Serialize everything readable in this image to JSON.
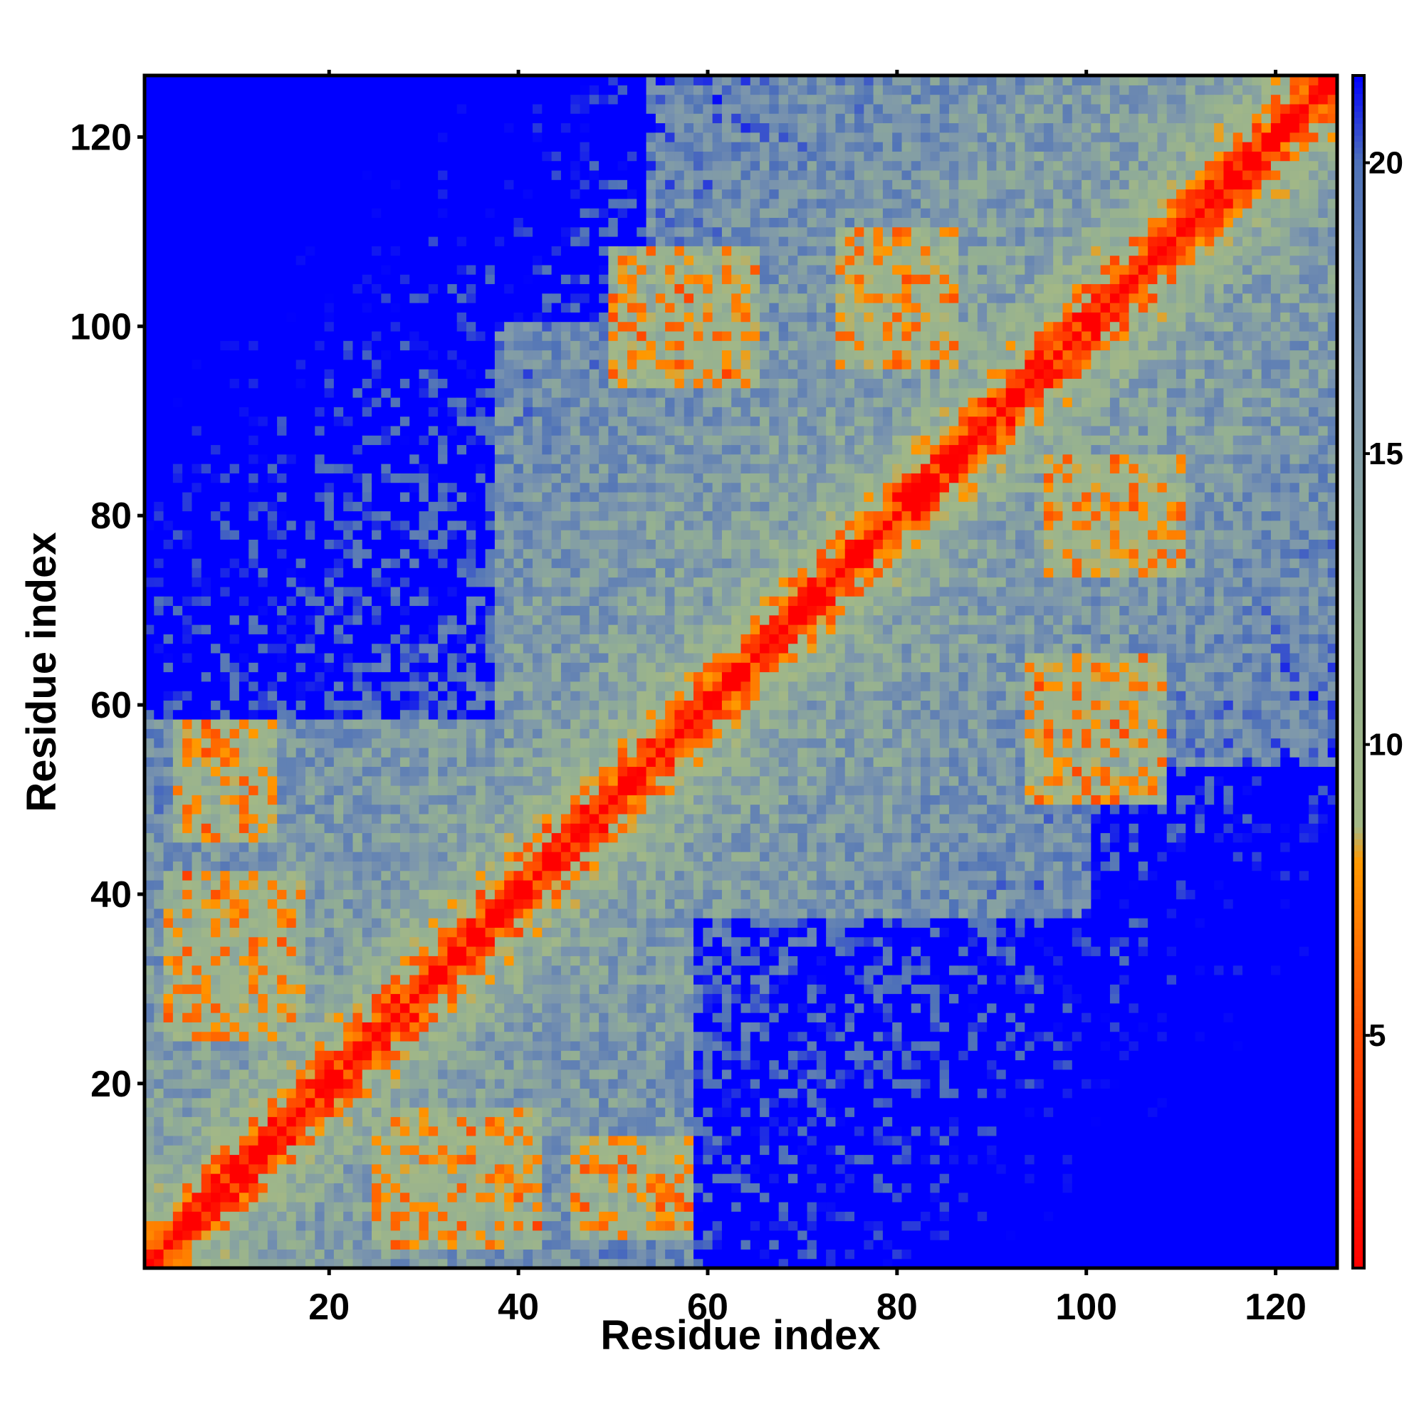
{
  "chart_data": {
    "type": "heatmap",
    "title": "",
    "xlabel": "Residue index",
    "ylabel": "Residue index",
    "n_residues": 126,
    "xlim": [
      1,
      126
    ],
    "ylim": [
      1,
      126
    ],
    "x_ticks": [
      20,
      40,
      60,
      80,
      100,
      120
    ],
    "y_ticks": [
      20,
      40,
      60,
      80,
      100,
      120
    ],
    "colorbar": {
      "range": [
        1,
        21.5
      ],
      "ticks": [
        5,
        10,
        15,
        20
      ],
      "stops": [
        {
          "value": 1,
          "color": "#ff0000"
        },
        {
          "value": 5,
          "color": "#ff4a00"
        },
        {
          "value": 8,
          "color": "#ff9900"
        },
        {
          "value": 8.6,
          "color": "#a3b886"
        },
        {
          "value": 12,
          "color": "#94b092"
        },
        {
          "value": 16,
          "color": "#7c96ad"
        },
        {
          "value": 20,
          "color": "#4f72b8"
        },
        {
          "value": 21.5,
          "color": "#0000ff"
        }
      ]
    },
    "grid": false,
    "value_description": "symmetric residue-residue distance map; diagonal near 1, distant pairs saturate at 21.5",
    "contact_bands": [
      {
        "x": [
          1,
          126
        ],
        "y": [
          1,
          126
        ],
        "kind": "diagonal"
      },
      {
        "x": [
          5,
          14
        ],
        "y": [
          27,
          37
        ],
        "kind": "sheet"
      },
      {
        "x": [
          30,
          40
        ],
        "y": [
          5,
          15
        ],
        "kind": "sheet"
      },
      {
        "x": [
          48,
          56
        ],
        "y": [
          6,
          12
        ],
        "kind": "sheet"
      },
      {
        "x": [
          53,
          63
        ],
        "y": [
          96,
          106
        ],
        "kind": "sheet"
      },
      {
        "x": [
          76,
          84
        ],
        "y": [
          98,
          106
        ],
        "kind": "sheet"
      },
      {
        "x": [
          96,
          106
        ],
        "y": [
          52,
          62
        ],
        "kind": "sheet"
      },
      {
        "x": [
          101,
          108
        ],
        "y": [
          76,
          84
        ],
        "kind": "sheet"
      }
    ]
  }
}
